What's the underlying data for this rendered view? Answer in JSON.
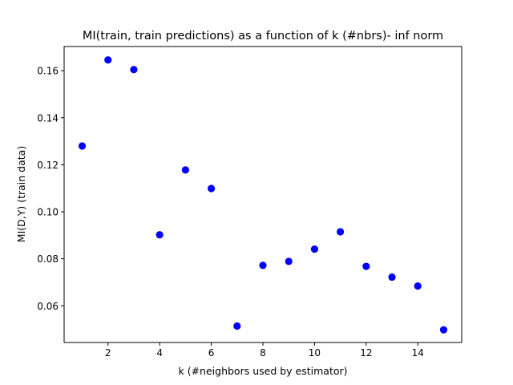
{
  "chart_data": {
    "type": "scatter",
    "title": "MI(train, train predictions) as a function of k (#nbrs)- inf norm",
    "xlabel": "k (#neighbors used by estimator)",
    "ylabel": "MI(D,Y)  (train data)",
    "xlim": [
      0.3,
      15.7
    ],
    "ylim": [
      0.0444,
      0.1703
    ],
    "xticks": [
      2,
      4,
      6,
      8,
      10,
      12,
      14
    ],
    "xtick_labels": [
      "2",
      "4",
      "6",
      "8",
      "10",
      "12",
      "14"
    ],
    "yticks": [
      0.06,
      0.08,
      0.1,
      0.12,
      0.14,
      0.16
    ],
    "ytick_labels": [
      "0.06",
      "0.08",
      "0.10",
      "0.12",
      "0.14",
      "0.16"
    ],
    "grid": false,
    "marker_color": "#0000ff",
    "points": [
      {
        "x": 1,
        "y": 0.128
      },
      {
        "x": 2,
        "y": 0.1646
      },
      {
        "x": 3,
        "y": 0.1605
      },
      {
        "x": 4,
        "y": 0.0902
      },
      {
        "x": 5,
        "y": 0.1178
      },
      {
        "x": 6,
        "y": 0.1099
      },
      {
        "x": 7,
        "y": 0.0514
      },
      {
        "x": 8,
        "y": 0.0772
      },
      {
        "x": 9,
        "y": 0.0789
      },
      {
        "x": 10,
        "y": 0.0841
      },
      {
        "x": 11,
        "y": 0.0915
      },
      {
        "x": 12,
        "y": 0.0768
      },
      {
        "x": 13,
        "y": 0.0722
      },
      {
        "x": 14,
        "y": 0.0684
      },
      {
        "x": 15,
        "y": 0.0498
      }
    ]
  }
}
